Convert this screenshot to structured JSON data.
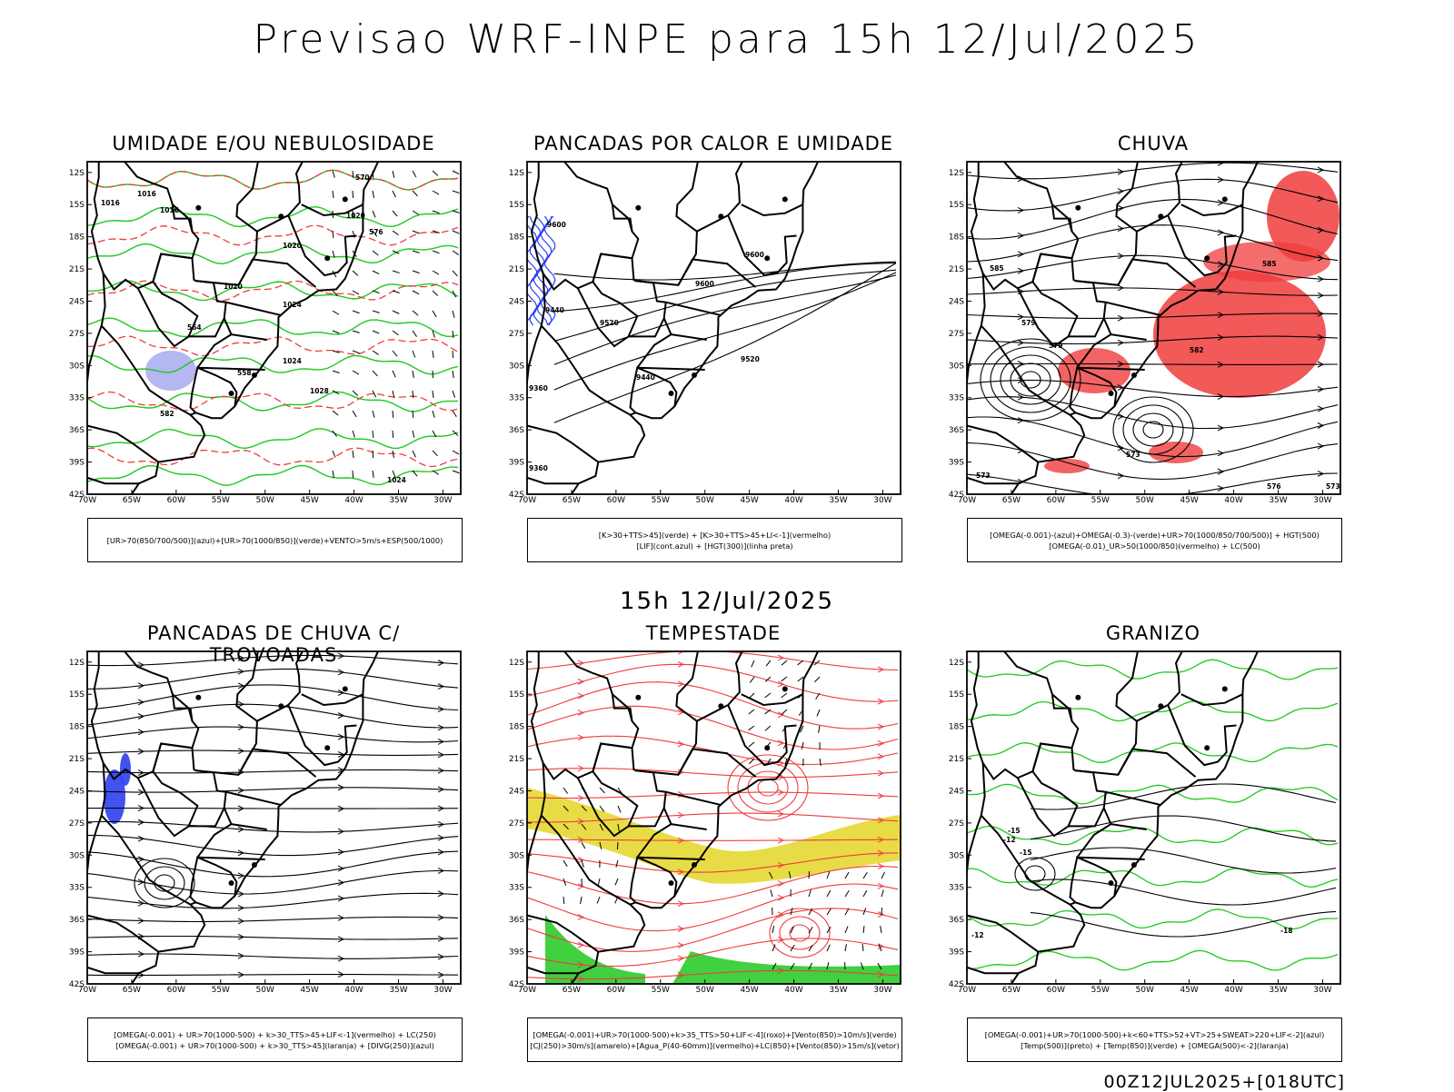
{
  "header": {
    "title": "Previsao WRF-INPE  para 15h 12/Jul/2025"
  },
  "middle": {
    "time_label": "15h 12/Jul/2025"
  },
  "footer": {
    "run_label": "00Z12JUL2025+[018UTC]"
  },
  "axes": {
    "lat_labels": [
      "12S",
      "15S",
      "18S",
      "21S",
      "24S",
      "27S",
      "30S",
      "33S",
      "36S",
      "39S",
      "42S"
    ],
    "lon_labels": [
      "70W",
      "65W",
      "60W",
      "55W",
      "50W",
      "45W",
      "40W",
      "35W",
      "30W"
    ]
  },
  "panels": [
    {
      "title": "UMIDADE E/OU NEBULOSIDADE",
      "legend": [
        "[UR>70(850/700/500)](azul)+[UR>70(1000/850)](verde)+VENTO>5m/s+ESP(500/1000)"
      ],
      "contour_labels": [
        "1016",
        "1016",
        "1016",
        "1020",
        "1020",
        "1020",
        "1024",
        "1024",
        "1028",
        "1024",
        "570",
        "576",
        "558",
        "564",
        "582"
      ],
      "colors": {
        "blue_fill": "#a8aaf0",
        "green": "#1ec81e",
        "red": "#f03c3c"
      }
    },
    {
      "title": "PANCADAS POR CALOR E UMIDADE",
      "legend": [
        "[K>30+TTS>45](verde) + [K>30+TTS>45+LI<-1](vermelho)",
        "[LIF](cont.azul) + [HGT(300)](linha preta)"
      ],
      "contour_labels": [
        "9600",
        "9600",
        "9600",
        "9520",
        "9440",
        "9440",
        "9520",
        "9360",
        "9360"
      ],
      "colors": {
        "blue": "#2c3ff0"
      }
    },
    {
      "title": "CHUVA",
      "legend": [
        "[OMEGA(-0.001)-(azul)+OMEGA(-0.3)-(verde)+UR>70(1000/850/700/500)] + HGT(500)",
        "[OMEGA(-0.01)_UR>50(1000/850)(vermelho) + LC(500)"
      ],
      "contour_labels": [
        "585",
        "585",
        "579",
        "579",
        "573",
        "573",
        "582",
        "576",
        "573"
      ],
      "colors": {
        "red": "#f03c3c"
      }
    },
    {
      "title": "PANCADAS DE CHUVA C/ TROVOADAS",
      "legend": [
        "[OMEGA(-0.001) + UR>70(1000-500) + k>30_TTS>45+LIF<-1](vermelho) + LC(250)",
        "[OMEGA(-0.001) + UR>70(1000-500) + k>30_TTS>45](laranja) + [DIVG(250)](azul)"
      ],
      "contour_labels": [],
      "colors": {
        "blue": "#2c3ff0"
      }
    },
    {
      "title": "TEMPESTADE",
      "legend": [
        "[OMEGA(-0.001)+UR>70(1000-500)+k>35_TTS>50+LIF<-4](roxo)+[Vento(850)>10m/s](verde)",
        "[CJ(250)>30m/s](amarelo)+[Agua_P(40-60mm)](vermelho)+LC(850)+[Vento(850)>15m/s](vetor)"
      ],
      "contour_labels": [],
      "colors": {
        "yellow": "#e6d832",
        "green": "#1ec81e",
        "red": "#f03c3c"
      }
    },
    {
      "title": "GRANIZO",
      "legend": [
        "[OMEGA(-0.001)+UR>70(1000-500)+k<60+TTS>52+VT>25+SWEAT>220+LIF<-2](azul)",
        "[Temp(500)](preto) + [Temp(850)](verde) + [OMEGA(500)<-2](laranja)"
      ],
      "contour_labels": [
        "-15",
        "-12",
        "-15",
        "-18",
        "-12"
      ],
      "colors": {
        "green": "#1ec81e"
      }
    }
  ]
}
